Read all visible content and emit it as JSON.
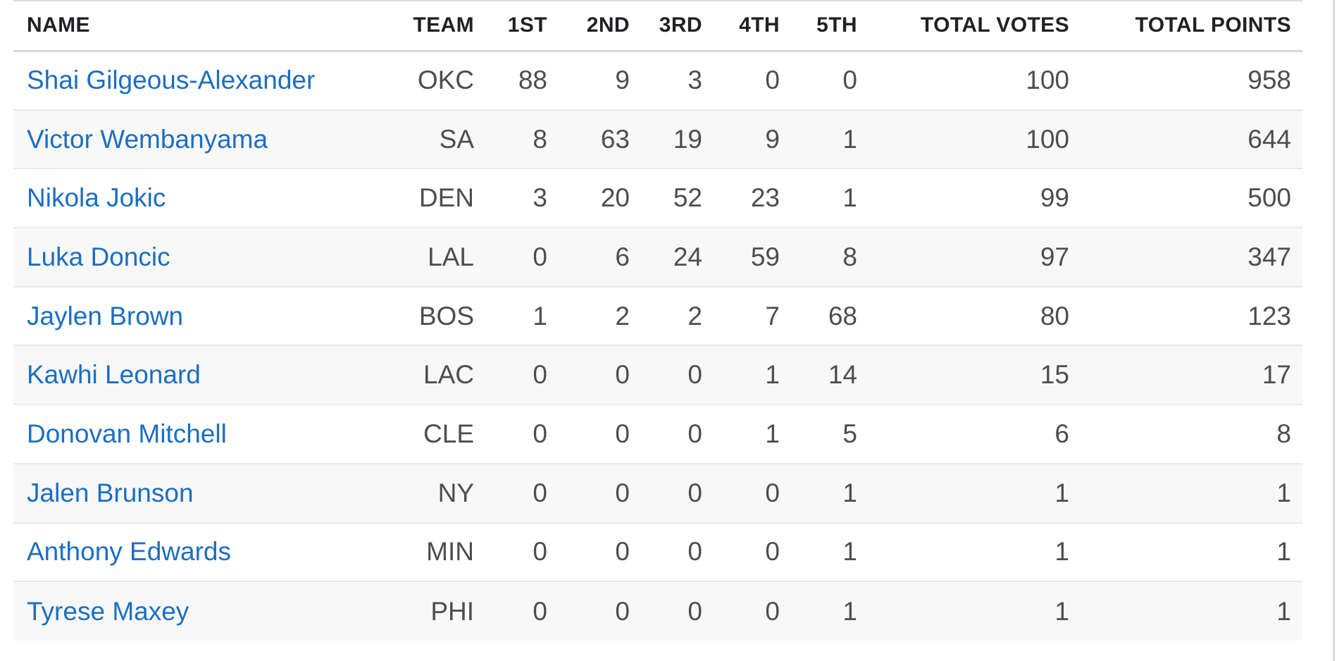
{
  "colors": {
    "background": "#ffffff",
    "row_stripe": "#f8f8f8",
    "row_border": "#e8e8e8",
    "header_border": "#d8d8d8",
    "header_text": "#1f2124",
    "body_text": "#4b4d4f",
    "link_blue": "#1b6ec2",
    "right_divider": "#d9dadb"
  },
  "table": {
    "columns": [
      {
        "key": "name",
        "label": "NAME"
      },
      {
        "key": "team",
        "label": "TEAM"
      },
      {
        "key": "first",
        "label": "1ST"
      },
      {
        "key": "second",
        "label": "2ND"
      },
      {
        "key": "third",
        "label": "3RD"
      },
      {
        "key": "fourth",
        "label": "4TH"
      },
      {
        "key": "fifth",
        "label": "5TH"
      },
      {
        "key": "total_votes",
        "label": "TOTAL VOTES"
      },
      {
        "key": "total_points",
        "label": "TOTAL POINTS"
      }
    ],
    "rows": [
      {
        "name": "Shai Gilgeous-Alexander",
        "team": "OKC",
        "first": "88",
        "second": "9",
        "third": "3",
        "fourth": "0",
        "fifth": "0",
        "total_votes": "100",
        "total_points": "958"
      },
      {
        "name": "Victor Wembanyama",
        "team": "SA",
        "first": "8",
        "second": "63",
        "third": "19",
        "fourth": "9",
        "fifth": "1",
        "total_votes": "100",
        "total_points": "644"
      },
      {
        "name": "Nikola Jokic",
        "team": "DEN",
        "first": "3",
        "second": "20",
        "third": "52",
        "fourth": "23",
        "fifth": "1",
        "total_votes": "99",
        "total_points": "500"
      },
      {
        "name": "Luka Doncic",
        "team": "LAL",
        "first": "0",
        "second": "6",
        "third": "24",
        "fourth": "59",
        "fifth": "8",
        "total_votes": "97",
        "total_points": "347"
      },
      {
        "name": "Jaylen Brown",
        "team": "BOS",
        "first": "1",
        "second": "2",
        "third": "2",
        "fourth": "7",
        "fifth": "68",
        "total_votes": "80",
        "total_points": "123"
      },
      {
        "name": "Kawhi Leonard",
        "team": "LAC",
        "first": "0",
        "second": "0",
        "third": "0",
        "fourth": "1",
        "fifth": "14",
        "total_votes": "15",
        "total_points": "17"
      },
      {
        "name": "Donovan Mitchell",
        "team": "CLE",
        "first": "0",
        "second": "0",
        "third": "0",
        "fourth": "1",
        "fifth": "5",
        "total_votes": "6",
        "total_points": "8"
      },
      {
        "name": "Jalen Brunson",
        "team": "NY",
        "first": "0",
        "second": "0",
        "third": "0",
        "fourth": "0",
        "fifth": "1",
        "total_votes": "1",
        "total_points": "1"
      },
      {
        "name": "Anthony Edwards",
        "team": "MIN",
        "first": "0",
        "second": "0",
        "third": "0",
        "fourth": "0",
        "fifth": "1",
        "total_votes": "1",
        "total_points": "1"
      },
      {
        "name": "Tyrese Maxey",
        "team": "PHI",
        "first": "0",
        "second": "0",
        "third": "0",
        "fourth": "0",
        "fifth": "1",
        "total_votes": "1",
        "total_points": "1"
      }
    ]
  }
}
